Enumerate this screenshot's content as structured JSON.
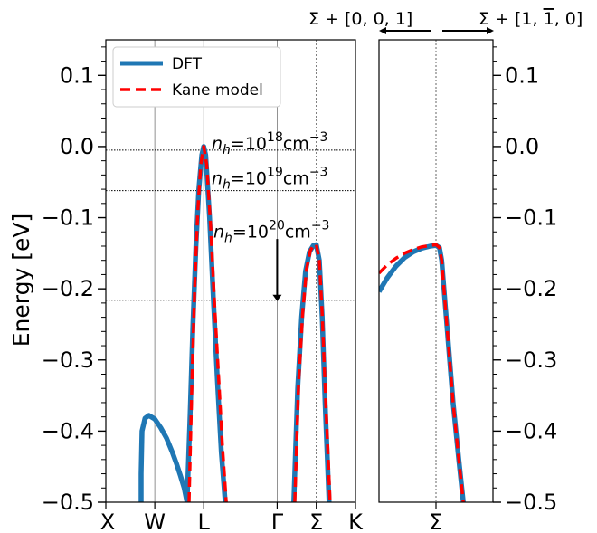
{
  "chart_data": {
    "type": "line",
    "ylabel": "Energy [eV]",
    "ylim": [
      -0.5,
      0.15
    ],
    "yticks": [
      "0.1",
      "0.0",
      "−0.1",
      "−0.2",
      "−0.3",
      "−0.4",
      "−0.5"
    ],
    "ytick_values": [
      0.1,
      0.0,
      -0.1,
      -0.2,
      -0.3,
      -0.4,
      -0.5
    ],
    "legend": {
      "position": "top-left",
      "entries": [
        "DFT",
        "Kane model"
      ]
    },
    "colors": {
      "DFT": "#1f77b4",
      "Kane model": "#ff0000"
    },
    "left_panel": {
      "xticks": [
        "X",
        "W",
        "L",
        "Γ",
        "Σ",
        "K"
      ],
      "xtick_positions": [
        0.0,
        0.5,
        1.0,
        1.75,
        2.15,
        2.55
      ],
      "xlim": [
        0.0,
        2.55
      ],
      "fermi_levels": [
        {
          "label_prefix": "n",
          "label_sub": "h",
          "label_eq": "=10",
          "label_exp": "18",
          "label_unit": "cm",
          "label_unit_exp": "−3",
          "energy": -0.005
        },
        {
          "label_prefix": "n",
          "label_sub": "h",
          "label_eq": "=10",
          "label_exp": "19",
          "label_unit": "cm",
          "label_unit_exp": "−3",
          "energy": -0.062
        },
        {
          "label_prefix": "n",
          "label_sub": "h",
          "label_eq": "=10",
          "label_exp": "20",
          "label_unit": "cm",
          "label_unit_exp": "−3",
          "energy": -0.216
        }
      ],
      "series": [
        {
          "name": "DFT",
          "segments": [
            {
              "x": [
                0.36,
                0.36,
                0.37,
                0.4,
                0.44,
                0.5,
                0.56,
                0.62,
                0.68,
                0.72,
                0.76,
                0.8,
                0.83
              ],
              "y": [
                -0.5,
                -0.46,
                -0.4,
                -0.382,
                -0.378,
                -0.383,
                -0.395,
                -0.41,
                -0.43,
                -0.445,
                -0.462,
                -0.48,
                -0.5
              ]
            },
            {
              "x": [
                0.83,
                0.86,
                0.89,
                0.92,
                0.95,
                0.98,
                1.0,
                1.02,
                1.06,
                1.1,
                1.14,
                1.18,
                1.22
              ],
              "y": [
                -0.5,
                -0.38,
                -0.25,
                -0.14,
                -0.06,
                -0.012,
                0.0,
                -0.012,
                -0.1,
                -0.22,
                -0.33,
                -0.43,
                -0.5
              ]
            },
            {
              "x": [
                1.92,
                1.96,
                2.0,
                2.04,
                2.08,
                2.12,
                2.15,
                2.18,
                2.21,
                2.24,
                2.28
              ],
              "y": [
                -0.5,
                -0.34,
                -0.24,
                -0.175,
                -0.148,
                -0.139,
                -0.138,
                -0.16,
                -0.24,
                -0.36,
                -0.5
              ]
            }
          ]
        },
        {
          "name": "Kane model",
          "segments": [
            {
              "x": [
                0.85,
                0.88,
                0.91,
                0.94,
                0.97,
                1.0,
                1.03,
                1.07,
                1.11,
                1.15,
                1.19,
                1.23
              ],
              "y": [
                -0.5,
                -0.33,
                -0.19,
                -0.09,
                -0.025,
                0.0,
                -0.025,
                -0.11,
                -0.22,
                -0.32,
                -0.42,
                -0.5
              ]
            },
            {
              "x": [
                1.93,
                1.97,
                2.01,
                2.05,
                2.09,
                2.12,
                2.15,
                2.18,
                2.21,
                2.25,
                2.29
              ],
              "y": [
                -0.5,
                -0.33,
                -0.235,
                -0.172,
                -0.146,
                -0.139,
                -0.138,
                -0.16,
                -0.235,
                -0.37,
                -0.5
              ]
            }
          ]
        }
      ]
    },
    "right_panel": {
      "xticks": [
        "Σ"
      ],
      "xtick_positions": [
        0.0
      ],
      "xlim": [
        -1.0,
        1.0
      ],
      "top_labels": {
        "left": "Σ + [0, 0, 1]",
        "right": "Σ + [1, 1̅, 0]",
        "right_prefix": "Σ + [1, ",
        "right_bar": "1",
        "right_suffix": ", 0]"
      },
      "series": [
        {
          "name": "DFT",
          "segments": [
            {
              "x": [
                -1.0,
                -0.85,
                -0.7,
                -0.55,
                -0.4,
                -0.25,
                -0.1,
                0.0,
                0.06,
                0.1,
                0.14,
                0.2,
                0.3,
                0.4,
                0.48
              ],
              "y": [
                -0.204,
                -0.184,
                -0.168,
                -0.156,
                -0.148,
                -0.143,
                -0.14,
                -0.139,
                -0.142,
                -0.16,
                -0.2,
                -0.26,
                -0.36,
                -0.44,
                -0.5
              ]
            }
          ]
        },
        {
          "name": "Kane model",
          "segments": [
            {
              "x": [
                -1.0,
                -0.85,
                -0.7,
                -0.55,
                -0.4,
                -0.25,
                -0.1,
                0.0,
                0.06,
                0.1,
                0.14,
                0.2,
                0.3,
                0.4,
                0.48
              ],
              "y": [
                -0.178,
                -0.166,
                -0.157,
                -0.15,
                -0.145,
                -0.141,
                -0.139,
                -0.138,
                -0.142,
                -0.16,
                -0.2,
                -0.26,
                -0.36,
                -0.44,
                -0.5
              ]
            }
          ]
        }
      ]
    }
  }
}
